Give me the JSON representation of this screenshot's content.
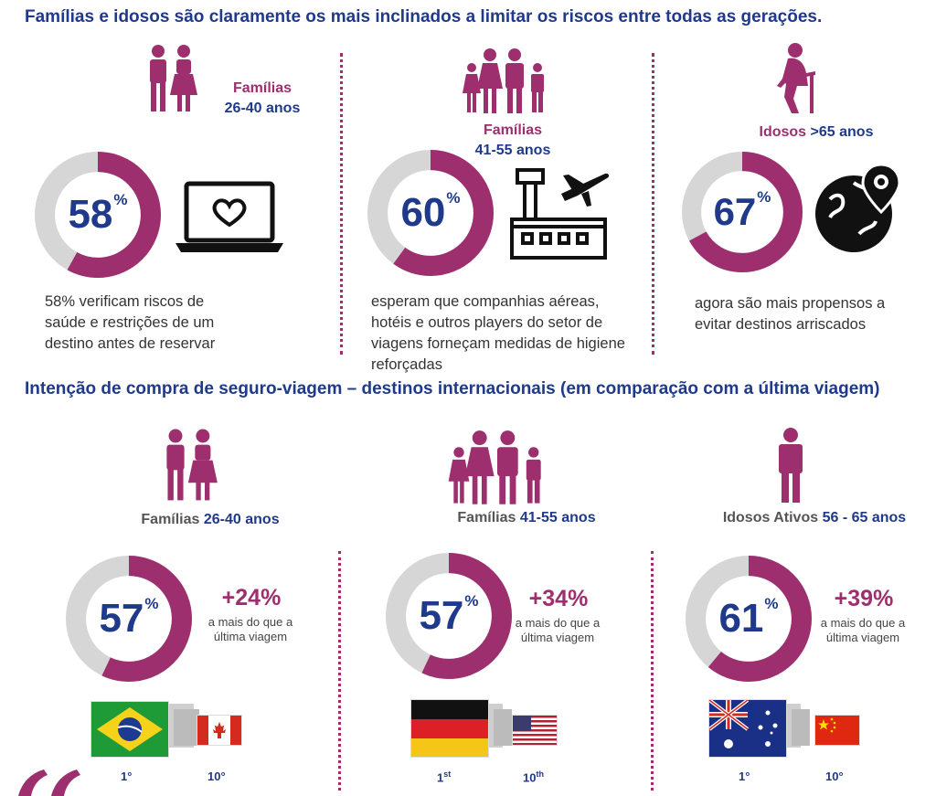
{
  "headings": {
    "top": "Famílias e idosos são claramente os mais inclinados a limitar os riscos entre todas as gerações.",
    "bottom": "Intenção de compra de seguro-viagem – destinos internacionais (em comparação com a última viagem)"
  },
  "risk_section": [
    {
      "group_line1": "Famílias",
      "group_line2": "26-40 anos",
      "percent": "58",
      "percent_value": 58,
      "description": "58% verificam riscos de saúde e restrições de um destino antes de reservar",
      "icon": "laptop-heart-icon"
    },
    {
      "group_line1": "Famílias",
      "group_line2": "41-55 anos",
      "percent": "60",
      "percent_value": 60,
      "description": "esperam que companhias aéreas, hotéis e outros players do setor de viagens forneçam medidas de higiene reforçadas",
      "icon": "airport-icon"
    },
    {
      "group_line1": "Idosos",
      "group_line2": ">65 anos",
      "percent": "67",
      "percent_value": 67,
      "description": "agora são mais propensos a evitar destinos arriscados",
      "icon": "globe-virus-icon"
    }
  ],
  "insurance_section": [
    {
      "group_a": "Famílias",
      "group_b": "26-40 anos",
      "percent": "57",
      "percent_value": 57,
      "increase": "+24%",
      "increase_note": "a mais do que a última viagem",
      "first_flag": "brazil-flag",
      "first_rank": "1°",
      "tenth_flag": "canada-flag",
      "tenth_rank": "10°"
    },
    {
      "group_a": "Famílias",
      "group_b": "41-55 anos",
      "percent": "57",
      "percent_value": 57,
      "increase": "+34%",
      "increase_note": "a mais do que a última viagem",
      "first_flag": "germany-flag",
      "first_rank": "1",
      "first_rank_sup": "st",
      "tenth_flag": "usa-flag",
      "tenth_rank": "10",
      "tenth_rank_sup": "th"
    },
    {
      "group_a": "Idosos Ativos",
      "group_b": "56 - 65 anos",
      "percent": "61",
      "percent_value": 61,
      "increase": "+39%",
      "increase_note": "a mais do que a última viagem",
      "first_flag": "australia-flag",
      "first_rank": "1°",
      "tenth_flag": "china-flag",
      "tenth_rank": "10°"
    }
  ],
  "percent_sign": "%",
  "colors": {
    "magenta": "#9e2f6e",
    "navy": "#1f3a8a",
    "ring_gray": "#d6d6d6"
  }
}
